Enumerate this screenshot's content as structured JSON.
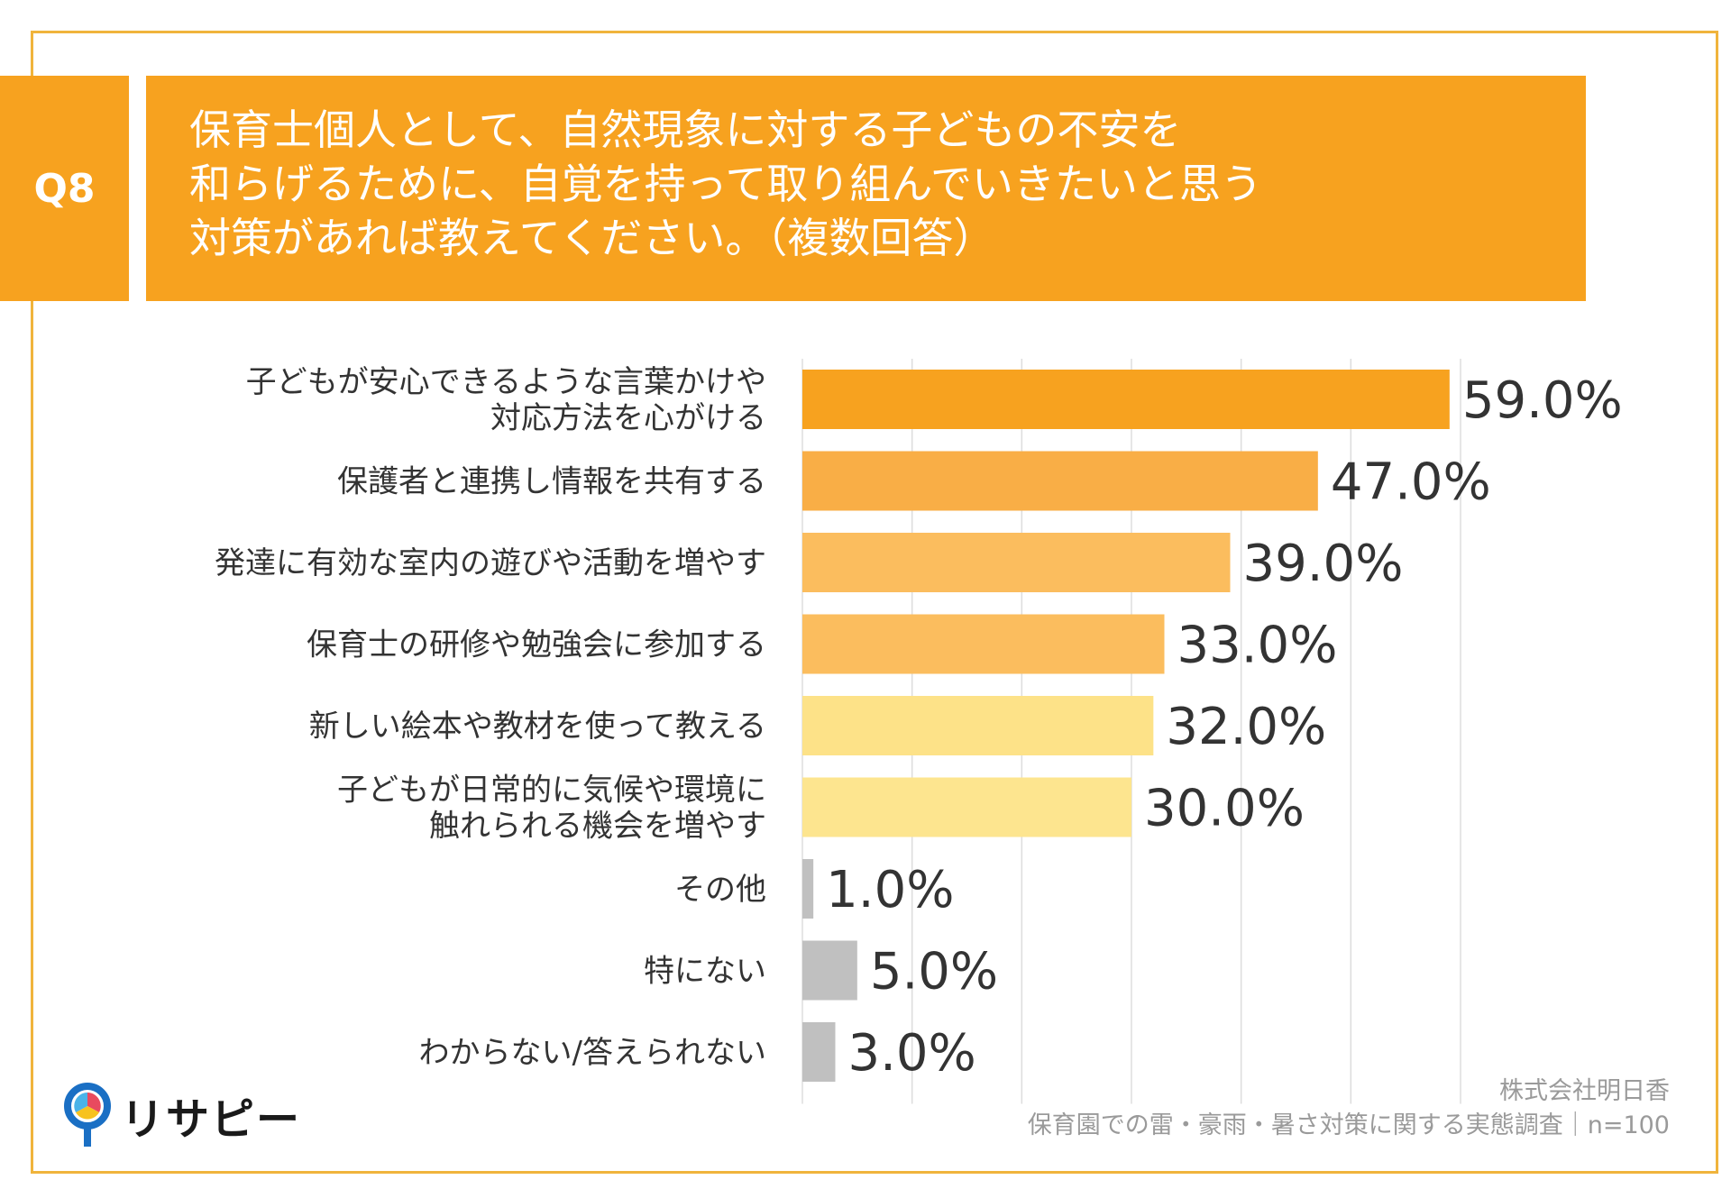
{
  "question": {
    "badge": "Q8",
    "lines": [
      "保育士個人として、自然現象に対する子どもの不安を",
      "和らげるために、自覚を持って取り組んでいきたいと思う",
      "対策があれば教えてください。（複数回答）"
    ]
  },
  "chart_data": {
    "type": "bar",
    "orientation": "horizontal",
    "title": "保育士個人として、自然現象に対する子どもの不安を和らげるために、自覚を持って取り組んでいきたいと思う対策があれば教えてください。（複数回答）",
    "categories": [
      [
        "子どもが安心できるような言葉かけや",
        "対応方法を心がける"
      ],
      [
        "保護者と連携し情報を共有する"
      ],
      [
        "発達に有効な室内の遊びや活動を増やす"
      ],
      [
        "保育士の研修や勉強会に参加する"
      ],
      [
        "新しい絵本や教材を使って教える"
      ],
      [
        "子どもが日常的に気候や環境に",
        "触れられる機会を増やす"
      ],
      [
        "その他"
      ],
      [
        "特にない"
      ],
      [
        "わからない/答えられない"
      ]
    ],
    "values": [
      59.0,
      47.0,
      39.0,
      33.0,
      32.0,
      30.0,
      1.0,
      5.0,
      3.0
    ],
    "value_labels": [
      "59.0%",
      "47.0%",
      "39.0%",
      "33.0%",
      "32.0%",
      "30.0%",
      "1.0%",
      "5.0%",
      "3.0%"
    ],
    "colors": [
      "#f7a21f",
      "#f9ae46",
      "#fbbd5e",
      "#fbbd5e",
      "#fde288",
      "#fde58f",
      "#c0c0c0",
      "#c0c0c0",
      "#c0c0c0"
    ],
    "xlim": [
      0,
      60
    ],
    "grid": true,
    "legend": "none"
  },
  "footer": {
    "brand": "リサピー",
    "source_company": "株式会社明日香",
    "source_survey": "保育園での雷・豪雨・暑さ対策に関する実態調査｜n=100"
  },
  "colors": {
    "accent": "#f7a21f",
    "frame": "#f0b43c",
    "grid": "#dddddd",
    "text": "#333333",
    "source_text": "#9a9a9a"
  }
}
